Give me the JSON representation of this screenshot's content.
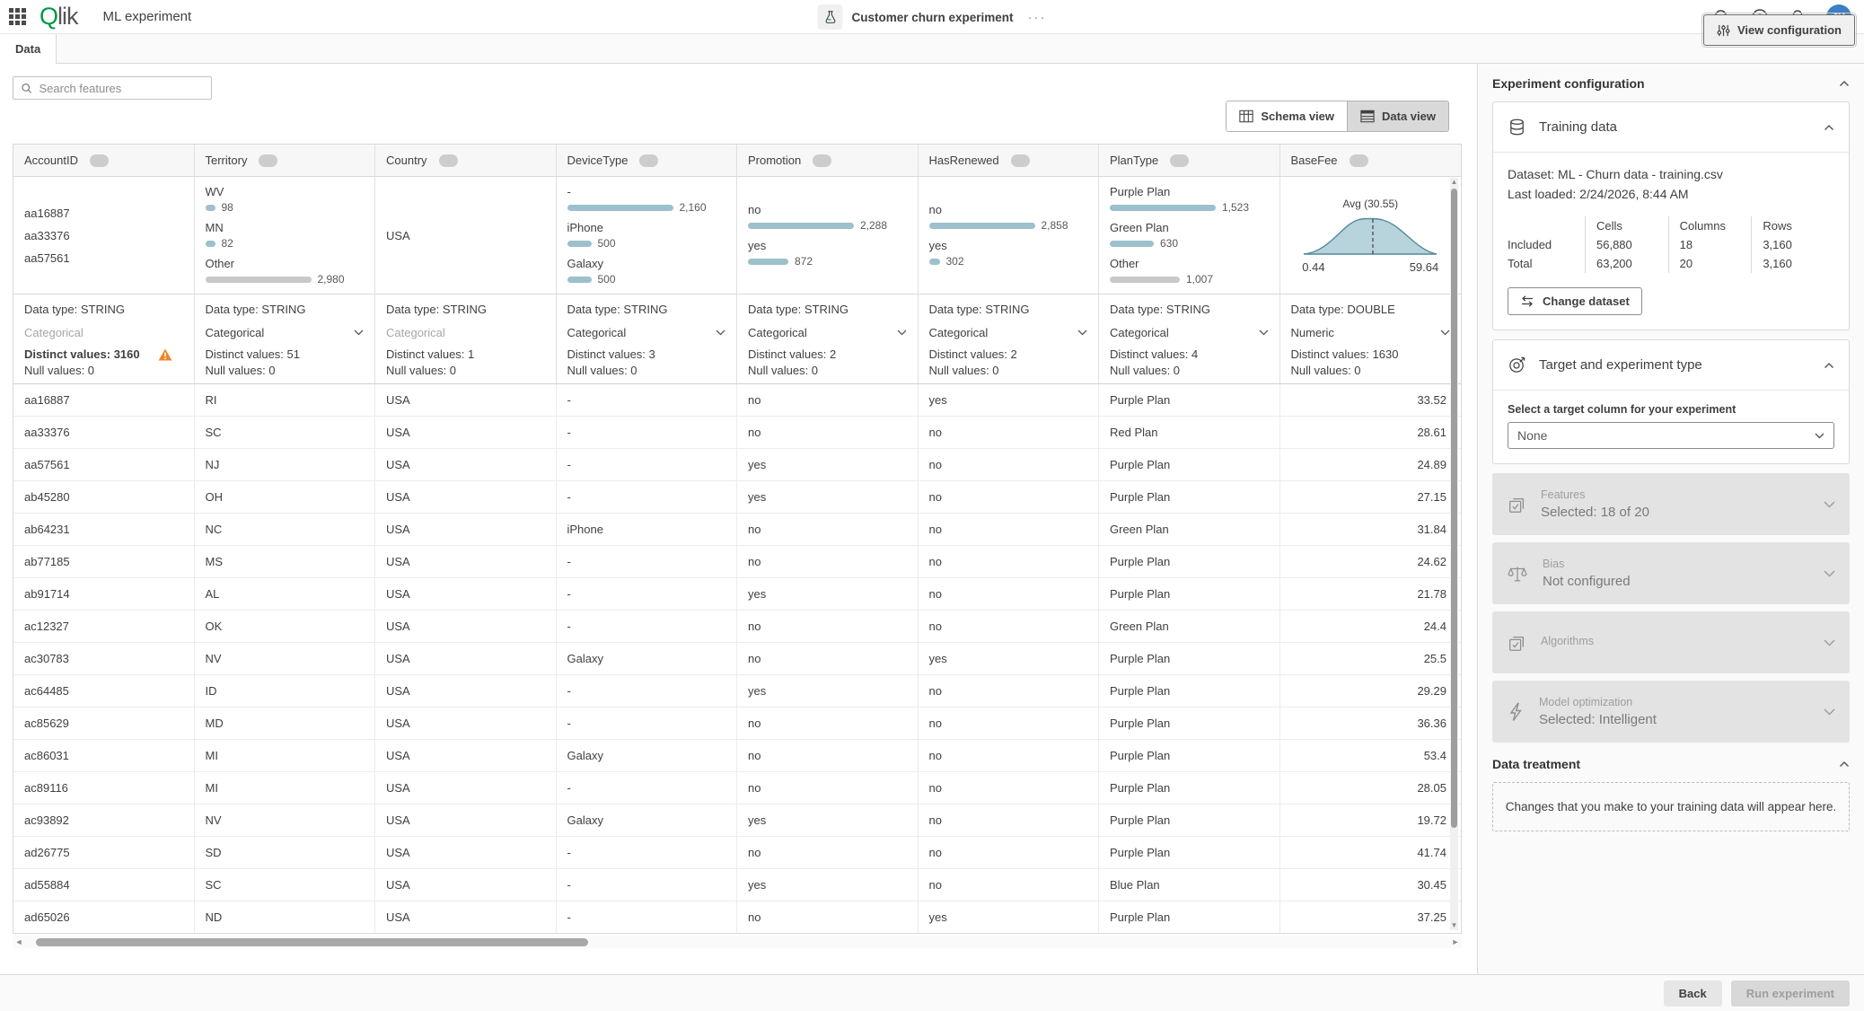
{
  "app": {
    "product_q": "Q",
    "product_rest": "lik",
    "title": "ML experiment",
    "experiment_name": "Customer churn experiment",
    "more_label": "···",
    "avatar_initials": "JK"
  },
  "tab": {
    "label": "Data"
  },
  "toolbar": {
    "view_configuration": "View configuration",
    "search_placeholder": "Search features",
    "schema_view": "Schema view",
    "data_view": "Data view"
  },
  "colors": {
    "accent_green": "#009845",
    "bar_blue": "#9cc0cc",
    "bar_gray": "#c9c9c9",
    "warning_orange": "#ee8625",
    "avatar_blue": "#3d7fc4"
  },
  "table": {
    "columns": [
      {
        "name": "AccountID",
        "type_label": "Data type: STRING",
        "role": "Categorical",
        "role_enabled": false,
        "distinct": "Distinct values: 3160",
        "warning": true,
        "nulls": "Null values: 0",
        "summary": {
          "type": "list",
          "values": [
            "aa16887",
            "aa33376",
            "aa57561"
          ]
        }
      },
      {
        "name": "Territory",
        "type_label": "Data type: STRING",
        "role": "Categorical",
        "role_enabled": true,
        "distinct": "Distinct values: 51",
        "warning": false,
        "nulls": "Null values: 0",
        "summary": {
          "type": "bars",
          "items": [
            {
              "label": "WV",
              "count": 98,
              "display": "98"
            },
            {
              "label": "MN",
              "count": 82,
              "display": "82"
            },
            {
              "label": "Other",
              "count": 2980,
              "display": "2,980",
              "gray": true
            }
          ]
        }
      },
      {
        "name": "Country",
        "type_label": "Data type: STRING",
        "role": "Categorical",
        "role_enabled": false,
        "distinct": "Distinct values: 1",
        "warning": false,
        "nulls": "Null values: 0",
        "summary": {
          "type": "text",
          "value": "USA"
        }
      },
      {
        "name": "DeviceType",
        "type_label": "Data type: STRING",
        "role": "Categorical",
        "role_enabled": true,
        "distinct": "Distinct values: 3",
        "warning": false,
        "nulls": "Null values: 0",
        "summary": {
          "type": "bars",
          "items": [
            {
              "label": "-",
              "count": 2160,
              "display": "2,160"
            },
            {
              "label": "iPhone",
              "count": 500,
              "display": "500"
            },
            {
              "label": "Galaxy",
              "count": 500,
              "display": "500"
            }
          ]
        }
      },
      {
        "name": "Promotion",
        "type_label": "Data type: STRING",
        "role": "Categorical",
        "role_enabled": true,
        "distinct": "Distinct values: 2",
        "warning": false,
        "nulls": "Null values: 0",
        "summary": {
          "type": "bars",
          "items": [
            {
              "label": "no",
              "count": 2288,
              "display": "2,288"
            },
            {
              "label": "yes",
              "count": 872,
              "display": "872"
            }
          ]
        }
      },
      {
        "name": "HasRenewed",
        "type_label": "Data type: STRING",
        "role": "Categorical",
        "role_enabled": true,
        "distinct": "Distinct values: 2",
        "warning": false,
        "nulls": "Null values: 0",
        "summary": {
          "type": "bars",
          "items": [
            {
              "label": "no",
              "count": 2858,
              "display": "2,858"
            },
            {
              "label": "yes",
              "count": 302,
              "display": "302"
            }
          ]
        }
      },
      {
        "name": "PlanType",
        "type_label": "Data type: STRING",
        "role": "Categorical",
        "role_enabled": true,
        "distinct": "Distinct values: 4",
        "warning": false,
        "nulls": "Null values: 0",
        "summary": {
          "type": "bars",
          "items": [
            {
              "label": "Purple Plan",
              "count": 1523,
              "display": "1,523"
            },
            {
              "label": "Green Plan",
              "count": 630,
              "display": "630"
            },
            {
              "label": "Other",
              "count": 1007,
              "display": "1,007",
              "gray": true
            }
          ]
        }
      },
      {
        "name": "BaseFee",
        "type_label": "Data type: DOUBLE",
        "role": "Numeric",
        "role_enabled": true,
        "distinct": "Distinct values: 1630",
        "warning": false,
        "nulls": "Null values: 0",
        "summary": {
          "type": "distribution",
          "avg_label": "Avg (30.55)",
          "min": "0.44",
          "max": "59.64"
        }
      }
    ],
    "rows": [
      [
        "aa16887",
        "RI",
        "USA",
        "-",
        "no",
        "yes",
        "Purple Plan",
        "33.52"
      ],
      [
        "aa33376",
        "SC",
        "USA",
        "-",
        "no",
        "no",
        "Red Plan",
        "28.61"
      ],
      [
        "aa57561",
        "NJ",
        "USA",
        "-",
        "yes",
        "no",
        "Purple Plan",
        "24.89"
      ],
      [
        "ab45280",
        "OH",
        "USA",
        "-",
        "yes",
        "no",
        "Purple Plan",
        "27.15"
      ],
      [
        "ab64231",
        "NC",
        "USA",
        "iPhone",
        "no",
        "no",
        "Green Plan",
        "31.84"
      ],
      [
        "ab77185",
        "MS",
        "USA",
        "-",
        "no",
        "no",
        "Purple Plan",
        "24.62"
      ],
      [
        "ab91714",
        "AL",
        "USA",
        "-",
        "yes",
        "no",
        "Purple Plan",
        "21.78"
      ],
      [
        "ac12327",
        "OK",
        "USA",
        "-",
        "no",
        "no",
        "Green Plan",
        "24.4"
      ],
      [
        "ac30783",
        "NV",
        "USA",
        "Galaxy",
        "no",
        "yes",
        "Purple Plan",
        "25.5"
      ],
      [
        "ac64485",
        "ID",
        "USA",
        "-",
        "yes",
        "no",
        "Purple Plan",
        "29.29"
      ],
      [
        "ac85629",
        "MD",
        "USA",
        "-",
        "no",
        "no",
        "Purple Plan",
        "36.36"
      ],
      [
        "ac86031",
        "MI",
        "USA",
        "Galaxy",
        "no",
        "no",
        "Purple Plan",
        "53.4"
      ],
      [
        "ac89116",
        "MI",
        "USA",
        "-",
        "no",
        "no",
        "Purple Plan",
        "28.05"
      ],
      [
        "ac93892",
        "NV",
        "USA",
        "Galaxy",
        "yes",
        "no",
        "Purple Plan",
        "19.72"
      ],
      [
        "ad26775",
        "SD",
        "USA",
        "-",
        "no",
        "no",
        "Purple Plan",
        "41.74"
      ],
      [
        "ad55884",
        "SC",
        "USA",
        "-",
        "yes",
        "no",
        "Blue Plan",
        "30.45"
      ],
      [
        "ad65026",
        "ND",
        "USA",
        "-",
        "no",
        "yes",
        "Purple Plan",
        "37.25"
      ]
    ]
  },
  "panel": {
    "title": "Experiment configuration",
    "training": {
      "title": "Training data",
      "dataset": "Dataset: ML - Churn data - training.csv",
      "last_loaded": "Last loaded: 2/24/2026, 8:44 AM",
      "stats_headers": [
        "Cells",
        "Columns",
        "Rows"
      ],
      "stats_rows": [
        {
          "label": "Included",
          "cells": "56,880",
          "columns": "18",
          "rows": "3,160"
        },
        {
          "label": "Total",
          "cells": "63,200",
          "columns": "20",
          "rows": "3,160"
        }
      ],
      "change_dataset": "Change dataset"
    },
    "target": {
      "title": "Target and experiment type",
      "label": "Select a target column for your experiment",
      "value": "None"
    },
    "disabled_sections": [
      {
        "title": "Features",
        "subtitle": "Selected: 18 of 20",
        "icon": "checkbox-icon"
      },
      {
        "title": "Bias",
        "subtitle": "Not configured",
        "icon": "scales-icon"
      },
      {
        "title": "Algorithms",
        "subtitle": "",
        "icon": "checkbox-icon"
      },
      {
        "title": "Model optimization",
        "subtitle": "Selected: Intelligent",
        "icon": "lightning-icon"
      }
    ],
    "data_treatment": {
      "title": "Data treatment",
      "empty_message": "Changes that you make to your training data will appear here."
    }
  },
  "footer": {
    "back": "Back",
    "run_experiment": "Run experiment"
  }
}
